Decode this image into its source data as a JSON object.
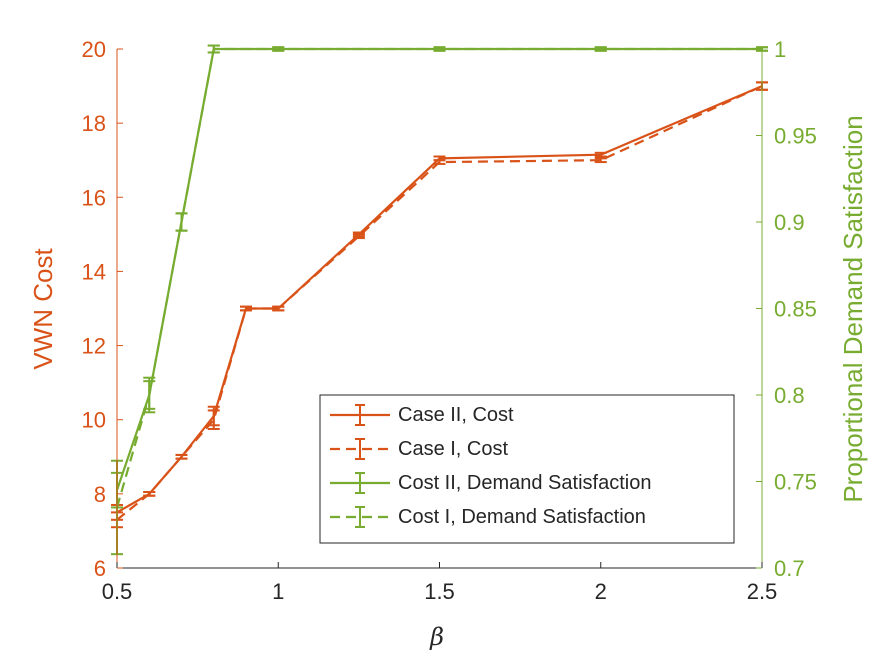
{
  "chart_data": {
    "type": "line",
    "xlabel": "β",
    "ylabel_left": "VWN Cost",
    "ylabel_right": "Proportional Demand Satisfaction",
    "xlim": [
      0.5,
      2.5
    ],
    "ylim_left": [
      6,
      20
    ],
    "ylim_right": [
      0.7,
      1.0
    ],
    "x_ticks": [
      "0.5",
      "1",
      "1.5",
      "2",
      "2.5"
    ],
    "y_left_ticks": [
      "6",
      "8",
      "10",
      "12",
      "14",
      "16",
      "18",
      "20"
    ],
    "y_right_ticks": [
      "0.7",
      "0.75",
      "0.8",
      "0.85",
      "0.9",
      "0.95",
      "1"
    ],
    "legend_position": "lower-right",
    "grid": false,
    "series": [
      {
        "name": "Case II, Cost",
        "axis": "left",
        "style": "solid",
        "color": "#d95319",
        "x": [
          0.5,
          0.6,
          0.7,
          0.8,
          0.9,
          1.0,
          1.25,
          1.5,
          2.0,
          2.5
        ],
        "y": [
          7.5,
          8.0,
          9.0,
          10.1,
          13.0,
          13.0,
          15.0,
          17.05,
          17.15,
          19.0
        ],
        "err": [
          0.2,
          0.05,
          0.05,
          0.25,
          0.05,
          0.05,
          0.05,
          0.05,
          0.05,
          0.1
        ]
      },
      {
        "name": "Case I, Cost",
        "axis": "left",
        "style": "dashed",
        "color": "#d95319",
        "x": [
          0.5,
          0.6,
          0.7,
          0.8,
          0.9,
          1.0,
          1.25,
          1.5,
          2.0,
          2.5
        ],
        "y": [
          7.3,
          8.0,
          9.0,
          10.0,
          13.0,
          13.0,
          14.95,
          16.95,
          17.0,
          19.0
        ],
        "err": [
          0.2,
          0.05,
          0.05,
          0.25,
          0.05,
          0.05,
          0.05,
          0.05,
          0.05,
          0.1
        ]
      },
      {
        "name": "Cost II, Demand Satisfaction",
        "axis": "right",
        "style": "solid",
        "color": "#77ac30",
        "x": [
          0.5,
          0.6,
          0.7,
          0.8,
          1.0,
          1.5,
          2.0,
          2.5
        ],
        "y": [
          0.745,
          0.8,
          0.9,
          1.0,
          1.0,
          1.0,
          1.0,
          1.0
        ],
        "err": [
          0.01,
          0.008,
          0.005,
          0.002,
          0.001,
          0.001,
          0.001,
          0.001
        ]
      },
      {
        "name": "Cost I, Demand Satisfaction",
        "axis": "right",
        "style": "dashed",
        "color": "#77ac30",
        "x": [
          0.5,
          0.6,
          0.7,
          0.8,
          1.0,
          1.5,
          2.0,
          2.5
        ],
        "y": [
          0.735,
          0.8,
          0.9,
          1.0,
          1.0,
          1.0,
          1.0,
          1.0
        ],
        "err": [
          0.027,
          0.01,
          0.005,
          0.002,
          0.001,
          0.001,
          0.001,
          0.001
        ]
      }
    ]
  }
}
